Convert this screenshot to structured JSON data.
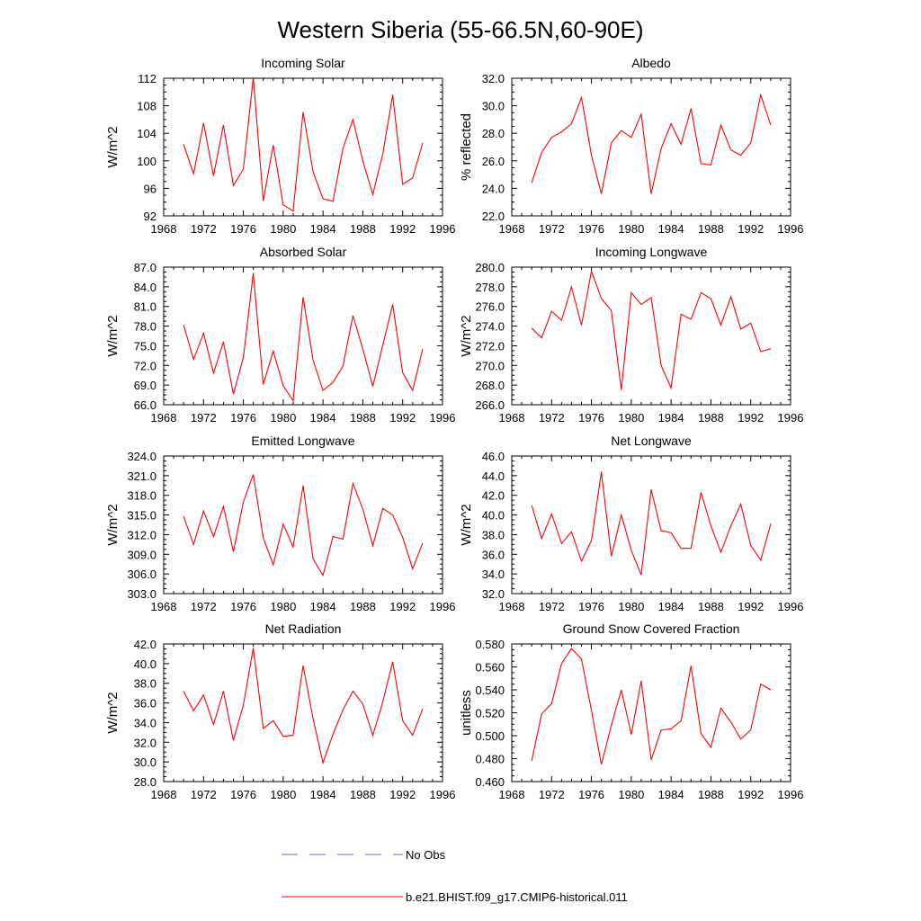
{
  "figure": {
    "title": "Western Siberia (55-66.5N,60-90E)",
    "legend": {
      "placement": "bottom",
      "entries": [
        {
          "label": "No Obs",
          "color": "#6666cc",
          "style": "dashed"
        },
        {
          "label": "b.e21.BHIST.f09_g17.CMIP6-historical.011",
          "color": "#ff0000",
          "style": "solid"
        }
      ]
    }
  },
  "chart_data": [
    {
      "type": "line",
      "title": "Incoming Solar",
      "ylabel": "W/m^2",
      "xlim": [
        1968,
        1996
      ],
      "ylim": [
        92,
        112
      ],
      "xticks": [
        "1968",
        "1972",
        "1976",
        "1980",
        "1984",
        "1988",
        "1992",
        "1996"
      ],
      "yticks": [
        "92",
        "96",
        "100",
        "104",
        "108",
        "112"
      ],
      "series": [
        {
          "color": "#ff0000",
          "x": [
            1970,
            1971,
            1972,
            1973,
            1974,
            1975,
            1976,
            1977,
            1978,
            1979,
            1980,
            1981,
            1982,
            1983,
            1984,
            1985,
            1986,
            1987,
            1988,
            1989,
            1990,
            1991,
            1992,
            1993,
            1994
          ],
          "y": [
            102.4,
            98.1,
            105.5,
            97.8,
            105.2,
            96.4,
            98.8,
            112.1,
            94.2,
            102.3,
            93.6,
            92.7,
            107.1,
            98.4,
            94.5,
            94.1,
            101.8,
            106.0,
            100.0,
            95.1,
            101.0,
            109.6,
            96.6,
            97.5,
            102.6
          ]
        }
      ]
    },
    {
      "type": "line",
      "title": "Albedo",
      "ylabel": "% reflected",
      "xlim": [
        1968,
        1996
      ],
      "ylim": [
        22.0,
        32.0
      ],
      "xticks": [
        "1968",
        "1972",
        "1976",
        "1980",
        "1984",
        "1988",
        "1992",
        "1996"
      ],
      "yticks": [
        "22.0",
        "24.0",
        "26.0",
        "28.0",
        "30.0",
        "32.0"
      ],
      "series": [
        {
          "color": "#ff0000",
          "x": [
            1970,
            1971,
            1972,
            1973,
            1974,
            1975,
            1976,
            1977,
            1978,
            1979,
            1980,
            1981,
            1982,
            1983,
            1984,
            1985,
            1986,
            1987,
            1988,
            1989,
            1990,
            1991,
            1992,
            1993,
            1994
          ],
          "y": [
            24.4,
            26.6,
            27.7,
            28.1,
            28.7,
            30.6,
            26.4,
            23.6,
            27.3,
            28.2,
            27.7,
            29.4,
            23.6,
            26.9,
            28.7,
            27.2,
            29.8,
            25.8,
            25.7,
            28.6,
            26.8,
            26.4,
            27.3,
            30.8,
            28.6
          ]
        }
      ]
    },
    {
      "type": "line",
      "title": "Absorbed Solar",
      "ylabel": "W/m^2",
      "xlim": [
        1968,
        1996
      ],
      "ylim": [
        66.0,
        87.0
      ],
      "xticks": [
        "1968",
        "1972",
        "1976",
        "1980",
        "1984",
        "1988",
        "1992",
        "1996"
      ],
      "yticks": [
        "66.0",
        "69.0",
        "72.0",
        "75.0",
        "78.0",
        "81.0",
        "84.0",
        "87.0"
      ],
      "series": [
        {
          "color": "#ff0000",
          "x": [
            1970,
            1971,
            1972,
            1973,
            1974,
            1975,
            1976,
            1977,
            1978,
            1979,
            1980,
            1981,
            1982,
            1983,
            1984,
            1985,
            1986,
            1987,
            1988,
            1989,
            1990,
            1991,
            1992,
            1993,
            1994
          ],
          "y": [
            78.2,
            72.9,
            76.9,
            70.8,
            75.6,
            67.6,
            73.2,
            86.1,
            69.1,
            74.2,
            68.9,
            66.6,
            82.4,
            72.8,
            68.2,
            69.4,
            71.9,
            79.6,
            74.5,
            68.8,
            75.1,
            81.3,
            70.9,
            68.2,
            74.5
          ]
        }
      ]
    },
    {
      "type": "line",
      "title": "Incoming Longwave",
      "ylabel": "W/m^2",
      "xlim": [
        1968,
        1996
      ],
      "ylim": [
        266.0,
        280.0
      ],
      "xticks": [
        "1968",
        "1972",
        "1976",
        "1980",
        "1984",
        "1988",
        "1992",
        "1996"
      ],
      "yticks": [
        "266.0",
        "268.0",
        "270.0",
        "272.0",
        "274.0",
        "276.0",
        "278.0",
        "280.0"
      ],
      "series": [
        {
          "color": "#ff0000",
          "x": [
            1970,
            1971,
            1972,
            1973,
            1974,
            1975,
            1976,
            1977,
            1978,
            1979,
            1980,
            1981,
            1982,
            1983,
            1984,
            1985,
            1986,
            1987,
            1988,
            1989,
            1990,
            1991,
            1992,
            1993,
            1994
          ],
          "y": [
            273.8,
            272.8,
            275.5,
            274.6,
            278.0,
            274.1,
            279.6,
            276.8,
            275.6,
            267.5,
            277.4,
            276.2,
            276.9,
            270.0,
            267.7,
            275.2,
            274.7,
            277.4,
            276.8,
            274.1,
            277.0,
            273.7,
            274.3,
            271.4,
            271.7
          ]
        }
      ]
    },
    {
      "type": "line",
      "title": "Emitted Longwave",
      "ylabel": "W/m^2",
      "xlim": [
        1968,
        1996
      ],
      "ylim": [
        303.0,
        324.0
      ],
      "xticks": [
        "1968",
        "1972",
        "1976",
        "1980",
        "1984",
        "1988",
        "1992",
        "1996"
      ],
      "yticks": [
        "303.0",
        "306.0",
        "309.0",
        "312.0",
        "315.0",
        "318.0",
        "321.0",
        "324.0"
      ],
      "series": [
        {
          "color": "#ff0000",
          "x": [
            1970,
            1971,
            1972,
            1973,
            1974,
            1975,
            1976,
            1977,
            1978,
            1979,
            1980,
            1981,
            1982,
            1983,
            1984,
            1985,
            1986,
            1987,
            1988,
            1989,
            1990,
            1991,
            1992,
            1993,
            1994
          ],
          "y": [
            314.8,
            310.5,
            315.6,
            311.7,
            316.3,
            309.4,
            317.0,
            321.2,
            311.5,
            307.4,
            313.6,
            310.1,
            319.5,
            308.3,
            305.8,
            311.7,
            311.3,
            319.8,
            315.9,
            310.3,
            316.0,
            315.0,
            311.6,
            306.8,
            310.7
          ]
        }
      ]
    },
    {
      "type": "line",
      "title": "Net Longwave",
      "ylabel": "W/m^2",
      "xlim": [
        1968,
        1996
      ],
      "ylim": [
        32.0,
        46.0
      ],
      "xticks": [
        "1968",
        "1972",
        "1976",
        "1980",
        "1984",
        "1988",
        "1992",
        "1996"
      ],
      "yticks": [
        "32.0",
        "34.0",
        "36.0",
        "38.0",
        "40.0",
        "42.0",
        "44.0",
        "46.0"
      ],
      "series": [
        {
          "color": "#ff0000",
          "x": [
            1970,
            1971,
            1972,
            1973,
            1974,
            1975,
            1976,
            1977,
            1978,
            1979,
            1980,
            1981,
            1982,
            1983,
            1984,
            1985,
            1986,
            1987,
            1988,
            1989,
            1990,
            1991,
            1992,
            1993,
            1994
          ],
          "y": [
            41.0,
            37.6,
            40.1,
            37.1,
            38.3,
            35.3,
            37.4,
            44.4,
            35.8,
            40.0,
            36.4,
            33.9,
            42.6,
            38.4,
            38.2,
            36.6,
            36.6,
            42.3,
            38.9,
            36.2,
            38.9,
            41.1,
            36.9,
            35.4,
            39.1
          ]
        }
      ]
    },
    {
      "type": "line",
      "title": "Net Radiation",
      "ylabel": "W/m^2",
      "xlim": [
        1968,
        1996
      ],
      "ylim": [
        28.0,
        42.0
      ],
      "xticks": [
        "1968",
        "1972",
        "1976",
        "1980",
        "1984",
        "1988",
        "1992",
        "1996"
      ],
      "yticks": [
        "28.0",
        "30.0",
        "32.0",
        "34.0",
        "36.0",
        "38.0",
        "40.0",
        "42.0"
      ],
      "series": [
        {
          "color": "#ff0000",
          "x": [
            1970,
            1971,
            1972,
            1973,
            1974,
            1975,
            1976,
            1977,
            1978,
            1979,
            1980,
            1981,
            1982,
            1983,
            1984,
            1985,
            1986,
            1987,
            1988,
            1989,
            1990,
            1991,
            1992,
            1993,
            1994
          ],
          "y": [
            37.2,
            35.2,
            36.8,
            33.8,
            37.2,
            32.2,
            35.8,
            41.6,
            33.4,
            34.2,
            32.6,
            32.7,
            39.8,
            34.4,
            29.9,
            32.8,
            35.3,
            37.2,
            35.9,
            32.7,
            36.1,
            40.2,
            34.2,
            32.7,
            35.4
          ]
        }
      ]
    },
    {
      "type": "line",
      "title": "Ground Snow Covered Fraction",
      "ylabel": "unitless",
      "xlim": [
        1968,
        1996
      ],
      "ylim": [
        0.46,
        0.58
      ],
      "xticks": [
        "1968",
        "1972",
        "1976",
        "1980",
        "1984",
        "1988",
        "1992",
        "1996"
      ],
      "yticks": [
        "0.460",
        "0.480",
        "0.500",
        "0.520",
        "0.540",
        "0.560",
        "0.580"
      ],
      "series": [
        {
          "color": "#ff0000",
          "x": [
            1970,
            1971,
            1972,
            1973,
            1974,
            1975,
            1976,
            1977,
            1978,
            1979,
            1980,
            1981,
            1982,
            1983,
            1984,
            1985,
            1986,
            1987,
            1988,
            1989,
            1990,
            1991,
            1992,
            1993,
            1994
          ],
          "y": [
            0.478,
            0.519,
            0.528,
            0.563,
            0.576,
            0.567,
            0.522,
            0.475,
            0.509,
            0.54,
            0.501,
            0.548,
            0.479,
            0.505,
            0.506,
            0.513,
            0.561,
            0.502,
            0.49,
            0.524,
            0.512,
            0.497,
            0.505,
            0.545,
            0.54
          ]
        }
      ]
    }
  ]
}
